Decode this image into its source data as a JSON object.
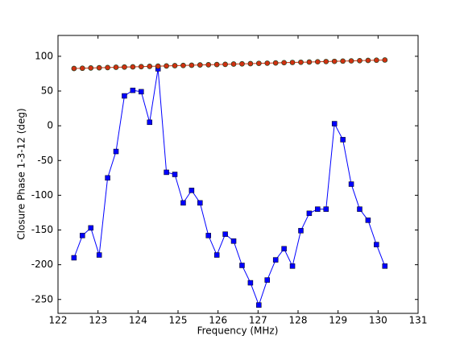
{
  "chart_data": {
    "type": "line",
    "x_label": "Frequency (MHz)",
    "y_label": "Closure Phase 1-3-12 (deg)",
    "x": [
      122.4,
      122.61,
      122.82,
      123.03,
      123.24,
      123.45,
      123.66,
      123.87,
      124.08,
      124.29,
      124.5,
      124.71,
      124.92,
      125.13,
      125.34,
      125.55,
      125.76,
      125.97,
      126.18,
      126.39,
      126.6,
      126.81,
      127.02,
      127.23,
      127.44,
      127.65,
      127.86,
      128.07,
      128.28,
      128.49,
      128.7,
      128.91,
      129.12,
      129.33,
      129.54,
      129.75,
      129.96,
      130.17
    ],
    "series": [
      {
        "color": "#0000ff",
        "marker": "square",
        "values": [
          -190,
          -158,
          -147,
          -186,
          -75,
          -37,
          43,
          51,
          49,
          5,
          82,
          -67,
          -70,
          -111,
          -93,
          -111,
          -158,
          -186,
          -156,
          -166,
          -201,
          -226,
          -258,
          -222,
          -193,
          -177,
          -202,
          -151,
          -126,
          -120,
          -120,
          3,
          -20,
          -84,
          -120,
          -136,
          -171,
          -202
        ]
      },
      {
        "color": "#d03010",
        "marker": "circle",
        "values": [
          82.5,
          82.8,
          83.2,
          83.5,
          83.8,
          84.2,
          84.5,
          84.8,
          85.1,
          85.5,
          85.8,
          86.1,
          86.5,
          86.8,
          87.1,
          87.5,
          87.8,
          88.1,
          88.4,
          88.8,
          89.1,
          89.4,
          89.8,
          90.1,
          90.4,
          90.8,
          91.1,
          91.4,
          91.7,
          92.1,
          92.4,
          92.7,
          93.1,
          93.4,
          93.7,
          94.1,
          94.4,
          94.7
        ]
      }
    ],
    "xlim": [
      122,
      131
    ],
    "xticks": [
      122,
      123,
      124,
      125,
      126,
      127,
      128,
      129,
      130,
      131
    ],
    "ylim": [
      -270,
      130
    ],
    "yticks": [
      -250,
      -200,
      -150,
      -100,
      -50,
      0,
      50,
      100
    ],
    "grid": false
  }
}
